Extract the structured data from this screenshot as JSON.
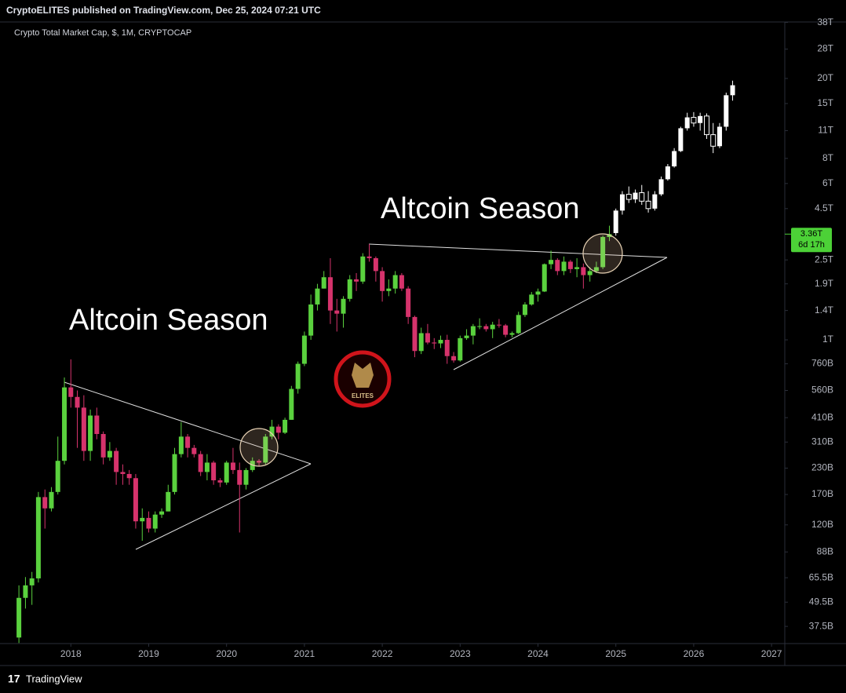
{
  "chart_data": {
    "type": "candlestick",
    "publisher_line": "CryptoELITES published on TradingView.com, Dec 25, 2024 07:21 UTC",
    "title": "Crypto Total Market Cap, $, 1M, CRYPTOCAP",
    "annotations": [
      "Altcoin Season",
      "Altcoin Season"
    ],
    "logo": "ELITES",
    "footer": "TradingView",
    "log_scale": true,
    "grid": false,
    "xlim": [
      2017.09,
      2027.17
    ],
    "xticks": [
      2018,
      2019,
      2020,
      2021,
      2022,
      2023,
      2024,
      2025,
      2026,
      2027
    ],
    "ylim": [
      30.8,
      38200
    ],
    "yticks": [
      {
        "value": 37.5,
        "label": "37.5B"
      },
      {
        "value": 49.5,
        "label": "49.5B"
      },
      {
        "value": 65.5,
        "label": "65.5B"
      },
      {
        "value": 88,
        "label": "88B"
      },
      {
        "value": 120,
        "label": "120B"
      },
      {
        "value": 170,
        "label": "170B"
      },
      {
        "value": 230,
        "label": "230B"
      },
      {
        "value": 310,
        "label": "310B"
      },
      {
        "value": 410,
        "label": "410B"
      },
      {
        "value": 560,
        "label": "560B"
      },
      {
        "value": 760,
        "label": "760B"
      },
      {
        "value": 1000,
        "label": "1T"
      },
      {
        "value": 1400,
        "label": "1.4T"
      },
      {
        "value": 1900,
        "label": "1.9T"
      },
      {
        "value": 2500,
        "label": "2.5T"
      },
      {
        "value": 4500,
        "label": "4.5T"
      },
      {
        "value": 6000,
        "label": "6T"
      },
      {
        "value": 8000,
        "label": "8T"
      },
      {
        "value": 11000,
        "label": "11T"
      },
      {
        "value": 15000,
        "label": "15T"
      },
      {
        "value": 20000,
        "label": "20T"
      },
      {
        "value": 28000,
        "label": "28T"
      },
      {
        "value": 38000,
        "label": "38T"
      }
    ],
    "last_price": {
      "value": 3360,
      "label": "3.36T"
    },
    "countdown": "6d 17h",
    "last_price_color": "#4cd137",
    "series": [
      {
        "up_color": "#5ad13e",
        "down_color": "#d6336c",
        "x": [
          2017.333,
          2017.417,
          2017.5,
          2017.583,
          2017.667,
          2017.75,
          2017.833,
          2017.917,
          2018,
          2018.083,
          2018.167,
          2018.25,
          2018.333,
          2018.417,
          2018.5,
          2018.583,
          2018.667,
          2018.75,
          2018.833,
          2018.917,
          2019,
          2019.083,
          2019.167,
          2019.25,
          2019.333,
          2019.417,
          2019.5,
          2019.583,
          2019.667,
          2019.75,
          2019.833,
          2019.917,
          2020,
          2020.083,
          2020.167,
          2020.25,
          2020.333,
          2020.417,
          2020.5,
          2020.583,
          2020.667,
          2020.75,
          2020.833,
          2020.917,
          2021,
          2021.083,
          2021.167,
          2021.25,
          2021.333,
          2021.417,
          2021.5,
          2021.583,
          2021.667,
          2021.75,
          2021.833,
          2021.917,
          2022,
          2022.083,
          2022.167,
          2022.25,
          2022.333,
          2022.417,
          2022.5,
          2022.583,
          2022.667,
          2022.75,
          2022.833,
          2022.917,
          2023,
          2023.083,
          2023.167,
          2023.25,
          2023.333,
          2023.417,
          2023.5,
          2023.583,
          2023.667,
          2023.75,
          2023.833,
          2023.917,
          2024,
          2024.083,
          2024.167,
          2024.25,
          2024.333,
          2024.417,
          2024.5,
          2024.583,
          2024.667,
          2024.75,
          2024.833,
          2024.917
        ],
        "open": [
          33,
          52,
          60,
          65,
          165,
          145,
          175,
          250,
          580,
          520,
          460,
          280,
          420,
          340,
          260,
          280,
          220,
          215,
          205,
          125,
          130,
          115,
          135,
          140,
          175,
          270,
          330,
          290,
          270,
          220,
          245,
          200,
          195,
          245,
          225,
          190,
          225,
          250,
          245,
          330,
          370,
          345,
          400,
          570,
          760,
          1050,
          1500,
          1800,
          2050,
          1400,
          1350,
          1600,
          2000,
          1950,
          2600,
          2550,
          2200,
          1750,
          1800,
          2100,
          1800,
          1300,
          880,
          1080,
          970,
          960,
          1000,
          830,
          790,
          1020,
          1050,
          1170,
          1170,
          1130,
          1190,
          1180,
          1060,
          1080,
          1330,
          1500,
          1680,
          1740,
          2380,
          2500,
          2200,
          2450,
          2250,
          2300,
          2100,
          2200,
          2300,
          3250
        ],
        "high": [
          60,
          66,
          70,
          175,
          180,
          185,
          330,
          650,
          800,
          560,
          530,
          450,
          460,
          350,
          310,
          290,
          240,
          225,
          215,
          145,
          140,
          140,
          145,
          190,
          290,
          390,
          340,
          300,
          280,
          270,
          250,
          205,
          250,
          290,
          245,
          230,
          260,
          255,
          340,
          400,
          380,
          410,
          590,
          780,
          1100,
          1680,
          1900,
          2200,
          2550,
          1600,
          1650,
          2100,
          2150,
          2700,
          3000,
          2600,
          2300,
          2000,
          2200,
          2150,
          1850,
          1320,
          1150,
          1200,
          1020,
          1050,
          1060,
          870,
          1050,
          1130,
          1200,
          1280,
          1200,
          1230,
          1270,
          1200,
          1100,
          1380,
          1540,
          1730,
          1800,
          2400,
          2780,
          2550,
          2600,
          2500,
          2550,
          2400,
          2300,
          2450,
          3300,
          3700
        ],
        "low": [
          31,
          46,
          48,
          62,
          115,
          140,
          170,
          240,
          460,
          290,
          250,
          250,
          320,
          240,
          250,
          190,
          190,
          190,
          115,
          100,
          110,
          110,
          130,
          140,
          170,
          260,
          260,
          260,
          210,
          200,
          190,
          185,
          190,
          215,
          110,
          180,
          220,
          235,
          240,
          320,
          320,
          340,
          400,
          540,
          740,
          1000,
          1400,
          1800,
          1200,
          1100,
          1150,
          1550,
          1750,
          1900,
          2450,
          1950,
          1550,
          1650,
          1700,
          1750,
          1200,
          820,
          850,
          950,
          900,
          910,
          760,
          770,
          780,
          1000,
          950,
          1130,
          1100,
          1020,
          1150,
          1030,
          1030,
          1070,
          1300,
          1480,
          1550,
          1730,
          2250,
          2100,
          2100,
          2150,
          2050,
          1800,
          1950,
          2150,
          2250,
          3100
        ],
        "close": [
          52,
          60,
          65,
          165,
          145,
          175,
          250,
          580,
          520,
          460,
          280,
          420,
          340,
          260,
          280,
          220,
          215,
          205,
          125,
          130,
          115,
          135,
          140,
          175,
          270,
          330,
          290,
          270,
          220,
          245,
          200,
          195,
          245,
          225,
          190,
          225,
          250,
          245,
          330,
          370,
          345,
          400,
          570,
          760,
          1050,
          1500,
          1800,
          2050,
          1400,
          1350,
          1600,
          2000,
          1950,
          2600,
          2550,
          2200,
          1750,
          1800,
          2100,
          1800,
          1300,
          880,
          1080,
          970,
          960,
          1000,
          830,
          790,
          1020,
          1050,
          1170,
          1170,
          1130,
          1190,
          1180,
          1060,
          1080,
          1330,
          1500,
          1680,
          1740,
          2380,
          2500,
          2200,
          2450,
          2250,
          2300,
          2100,
          2200,
          2300,
          3250,
          3360
        ]
      },
      {
        "up_color": "#ffffff",
        "down_color": "#ffffff",
        "x": [
          2025,
          2025.083,
          2025.167,
          2025.25,
          2025.333,
          2025.417,
          2025.5,
          2025.583,
          2025.667,
          2025.75,
          2025.833,
          2025.917,
          2026,
          2026.083,
          2026.167,
          2026.25,
          2026.333,
          2026.417,
          2026.5
        ],
        "open": [
          3400,
          4400,
          5300,
          5000,
          5400,
          4900,
          4500,
          5300,
          6300,
          7300,
          8700,
          11300,
          12800,
          12000,
          13000,
          10500,
          9200,
          11500,
          16500
        ],
        "high": [
          4500,
          5500,
          5800,
          5600,
          5900,
          5500,
          5500,
          6500,
          7500,
          9000,
          11500,
          13500,
          13600,
          13500,
          13400,
          12000,
          12000,
          17000,
          19500
        ],
        "low": [
          3300,
          4200,
          4800,
          4800,
          4700,
          4300,
          4400,
          5200,
          6200,
          7200,
          8600,
          11000,
          11500,
          11000,
          10000,
          8500,
          9000,
          11000,
          15500
        ],
        "close": [
          4400,
          5300,
          5000,
          5400,
          4900,
          4500,
          5300,
          6300,
          7300,
          8700,
          11300,
          12800,
          12000,
          13000,
          10500,
          9200,
          11500,
          16500,
          18500
        ]
      }
    ]
  }
}
